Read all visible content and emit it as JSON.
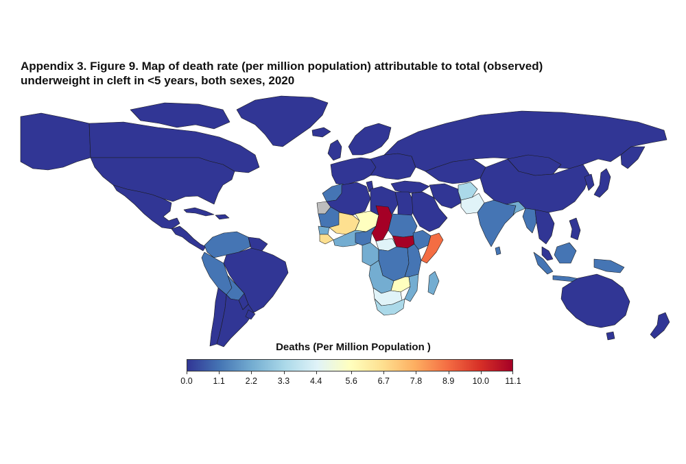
{
  "figure": {
    "title_line1": "Appendix 3. Figure 9. Map of death rate (per million population) attributable to total (observed)",
    "title_line2": "underweight in cleft in <5 years, both sexes, 2020"
  },
  "map": {
    "type": "choropleth world map",
    "colors": {
      "very_low": "#313695",
      "low": "#4575b4",
      "mid_low": "#74add1",
      "light": "#abd9e9",
      "neutral": "#e0f3f8",
      "pale": "#ffffbf",
      "yellow": "#fee090",
      "orange": "#fdae61",
      "deep_orange": "#f46d43",
      "red": "#d73027",
      "max": "#a50026",
      "missing": "#bdbdbd",
      "border": "#1a1a1a"
    }
  },
  "legend": {
    "title": "Deaths (Per Million Population )",
    "min": 0.0,
    "max": 11.1,
    "tick_labels": [
      "0.0",
      "1.1",
      "2.2",
      "3.3",
      "4.4",
      "5.6",
      "6.7",
      "7.8",
      "8.9",
      "10.0",
      "11.1"
    ],
    "gradient": [
      "#313695",
      "#4575b4",
      "#74add1",
      "#abd9e9",
      "#e0f3f8",
      "#ffffbf",
      "#fee090",
      "#fdae61",
      "#f46d43",
      "#d73027",
      "#a50026"
    ]
  }
}
